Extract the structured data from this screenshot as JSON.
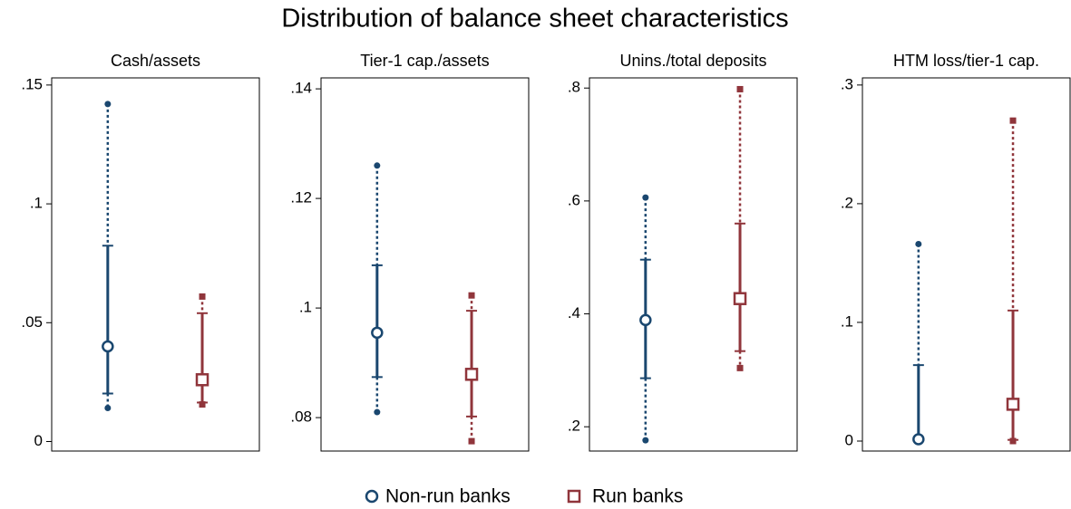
{
  "title": "Distribution of balance sheet characteristics",
  "chart_data": [
    {
      "type": "range",
      "title": "Cash/assets",
      "ylim": [
        -0.004,
        0.153
      ],
      "yticks": [
        0,
        {
          "value": 0.05,
          "label": ".05"
        },
        {
          "value": 0.1,
          "label": ".1"
        },
        {
          "value": 0.15,
          "label": ".15"
        }
      ],
      "series": [
        {
          "name": "Non-run banks",
          "color": "#1a476f",
          "marker": "circle",
          "whisker_low": 0.0141,
          "lower": 0.0202,
          "median": 0.04,
          "upper": 0.0824,
          "whisker_high": 0.142
        },
        {
          "name": "Run banks",
          "color": "#90353b",
          "marker": "square",
          "whisker_low": 0.0156,
          "lower": 0.0164,
          "median": 0.026,
          "upper": 0.054,
          "whisker_high": 0.061
        }
      ]
    },
    {
      "type": "range",
      "title": "Tier-1 cap./assets",
      "ylim": [
        0.0739,
        0.142
      ],
      "yticks": [
        {
          "value": 0.08,
          "label": ".08"
        },
        {
          "value": 0.1,
          "label": ".1"
        },
        {
          "value": 0.12,
          "label": ".12"
        },
        {
          "value": 0.14,
          "label": ".14"
        }
      ],
      "series": [
        {
          "name": "Non-run banks",
          "color": "#1a476f",
          "marker": "circle",
          "whisker_low": 0.081,
          "lower": 0.0874,
          "median": 0.0955,
          "upper": 0.1078,
          "whisker_high": 0.126
        },
        {
          "name": "Run banks",
          "color": "#90353b",
          "marker": "square",
          "whisker_low": 0.0757,
          "lower": 0.0802,
          "median": 0.0879,
          "upper": 0.0995,
          "whisker_high": 0.1023
        }
      ]
    },
    {
      "type": "range",
      "title": "Unins./total deposits",
      "ylim": [
        0.157,
        0.818
      ],
      "yticks": [
        {
          "value": 0.2,
          "label": ".2"
        },
        {
          "value": 0.4,
          "label": ".4"
        },
        {
          "value": 0.6,
          "label": ".6"
        },
        {
          "value": 0.8,
          "label": ".8"
        }
      ],
      "series": [
        {
          "name": "Non-run banks",
          "color": "#1a476f",
          "marker": "circle",
          "whisker_low": 0.176,
          "lower": 0.286,
          "median": 0.389,
          "upper": 0.496,
          "whisker_high": 0.606
        },
        {
          "name": "Run banks",
          "color": "#90353b",
          "marker": "square",
          "whisker_low": 0.304,
          "lower": 0.334,
          "median": 0.427,
          "upper": 0.56,
          "whisker_high": 0.798
        }
      ]
    },
    {
      "type": "range",
      "title": "HTM loss/tier-1 cap.",
      "ylim": [
        -0.0084,
        0.306
      ],
      "yticks": [
        0,
        {
          "value": 0.1,
          "label": ".1"
        },
        {
          "value": 0.2,
          "label": ".2"
        },
        {
          "value": 0.3,
          "label": ".3"
        }
      ],
      "series": [
        {
          "name": "Non-run banks",
          "color": "#1a476f",
          "marker": "circle",
          "whisker_low": 0,
          "lower": 0.001,
          "median": 0.0015,
          "upper": 0.064,
          "whisker_high": 0.166
        },
        {
          "name": "Run banks",
          "color": "#90353b",
          "marker": "square",
          "whisker_low": 0,
          "lower": 0.001,
          "median": 0.031,
          "upper": 0.11,
          "whisker_high": 0.27
        }
      ]
    }
  ]
}
